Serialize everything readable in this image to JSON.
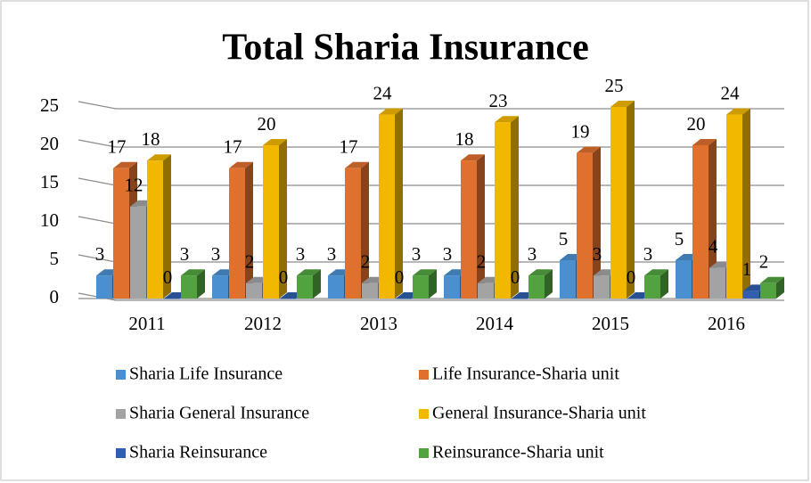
{
  "chart_data": {
    "type": "bar3d",
    "title": "Total Sharia Insurance",
    "categories": [
      "2011",
      "2012",
      "2013",
      "2014",
      "2015",
      "2016"
    ],
    "series": [
      {
        "name": "Sharia Life Insurance",
        "color": "#4a8fd0",
        "values": [
          3,
          3,
          3,
          3,
          5,
          5
        ]
      },
      {
        "name": "Life Insurance-Sharia unit",
        "color": "#e0702e",
        "values": [
          17,
          17,
          17,
          18,
          19,
          20
        ]
      },
      {
        "name": "Sharia General Insurance",
        "color": "#a3a3a3",
        "values": [
          12,
          2,
          2,
          2,
          3,
          4
        ]
      },
      {
        "name": "General Insurance-Sharia unit",
        "color": "#f2b800",
        "values": [
          18,
          20,
          24,
          23,
          25,
          24
        ]
      },
      {
        "name": "Sharia Reinsurance",
        "color": "#2f5fae",
        "values": [
          0,
          0,
          0,
          0,
          0,
          1
        ]
      },
      {
        "name": "Reinsurance-Sharia unit",
        "color": "#52a33f",
        "values": [
          3,
          3,
          3,
          3,
          3,
          2
        ]
      }
    ],
    "ylim": [
      0,
      25
    ],
    "yticks": [
      0,
      5,
      10,
      15,
      20,
      25
    ],
    "grid": true
  }
}
